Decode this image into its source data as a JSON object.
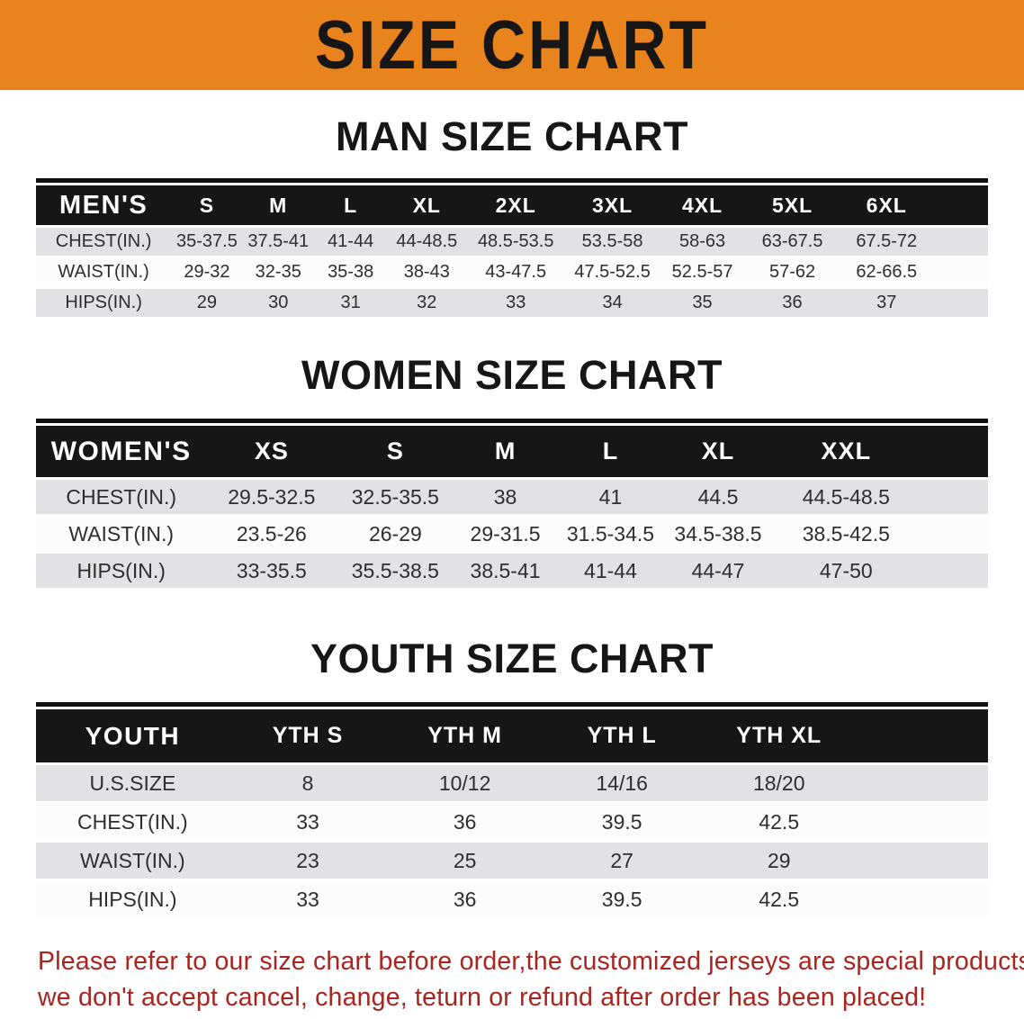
{
  "banner": {
    "title": "SIZE CHART"
  },
  "colors": {
    "banner_bg": "#E8831D",
    "header_bg": "#161616",
    "row_gray": "#E2E2E4",
    "footer_red": "#A8251F"
  },
  "sections": [
    {
      "heading": "MAN SIZE CHART",
      "table": {
        "corner_label": "MEN'S",
        "columns": [
          "S",
          "M",
          "L",
          "XL",
          "2XL",
          "3XL",
          "4XL",
          "5XL",
          "6XL"
        ],
        "rows": [
          {
            "label": "CHEST(IN.)",
            "values": [
              "35-37.5",
              "37.5-41",
              "41-44",
              "44-48.5",
              "48.5-53.5",
              "53.5-58",
              "58-63",
              "63-67.5",
              "67.5-72"
            ]
          },
          {
            "label": "WAIST(IN.)",
            "values": [
              "29-32",
              "32-35",
              "35-38",
              "38-43",
              "43-47.5",
              "47.5-52.5",
              "52.5-57",
              "57-62",
              "62-66.5"
            ]
          },
          {
            "label": "HIPS(IN.)",
            "values": [
              "29",
              "30",
              "31",
              "32",
              "33",
              "34",
              "35",
              "36",
              "37"
            ]
          }
        ]
      }
    },
    {
      "heading": "WOMEN SIZE CHART",
      "table": {
        "corner_label": "WOMEN'S",
        "columns": [
          "XS",
          "S",
          "M",
          "L",
          "XL",
          "XXL"
        ],
        "rows": [
          {
            "label": "CHEST(IN.)",
            "values": [
              "29.5-32.5",
              "32.5-35.5",
              "38",
              "41",
              "44.5",
              "44.5-48.5"
            ]
          },
          {
            "label": "WAIST(IN.)",
            "values": [
              "23.5-26",
              "26-29",
              "29-31.5",
              "31.5-34.5",
              "34.5-38.5",
              "38.5-42.5"
            ]
          },
          {
            "label": "HIPS(IN.)",
            "values": [
              "33-35.5",
              "35.5-38.5",
              "38.5-41",
              "41-44",
              "44-47",
              "47-50"
            ]
          }
        ]
      }
    },
    {
      "heading": "YOUTH SIZE CHART",
      "table": {
        "corner_label": "YOUTH",
        "columns": [
          "YTH S",
          "YTH M",
          "YTH L",
          "YTH XL"
        ],
        "rows": [
          {
            "label": "U.S.SIZE",
            "values": [
              "8",
              "10/12",
              "14/16",
              "18/20"
            ]
          },
          {
            "label": "CHEST(IN.)",
            "values": [
              "33",
              "36",
              "39.5",
              "42.5"
            ]
          },
          {
            "label": "WAIST(IN.)",
            "values": [
              "23",
              "25",
              "27",
              "29"
            ]
          },
          {
            "label": "HIPS(IN.)",
            "values": [
              "33",
              "36",
              "39.5",
              "42.5"
            ]
          }
        ]
      }
    }
  ],
  "footer": {
    "lines": [
      "Please refer to our size chart before order,the customized jerseys are special products,",
      "we don't accept cancel, change, teturn or refund after order has been placed!"
    ]
  }
}
